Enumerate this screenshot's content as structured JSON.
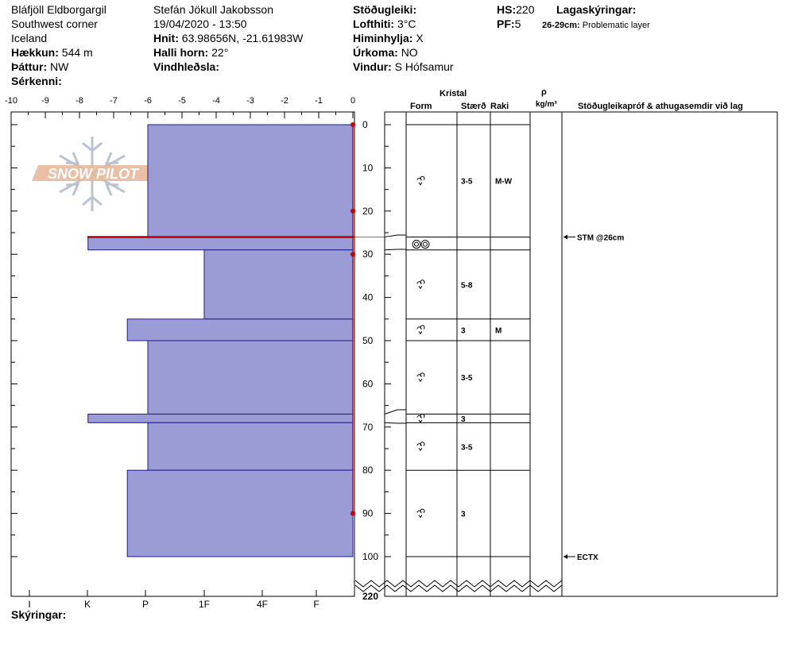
{
  "header": {
    "location": "Bláfjöll Eldborgargil",
    "region": "Southwest corner",
    "country": "Iceland",
    "elevation_label": "Hækkun:",
    "elevation_value": "544 m",
    "aspect_label": "Þáttur:",
    "aspect_value": "NW",
    "features_label": "Sérkenni:",
    "observer": "Stefán Jökull Jakobsson",
    "datetime": "19/04/2020 - 13:50",
    "coords_label": "Hnit:",
    "coords_value": "63.98656N, -21.61983W",
    "slope_label": "Halli horn:",
    "slope_value": "22°",
    "wind_loading_label": "Vindhleðsla:",
    "stability_label": "Stöðugleiki:",
    "air_temp_label": "Lofthiti:",
    "air_temp_value": "3°C",
    "sky_label": "Himinhylja:",
    "sky_value": "X",
    "precip_label": "Úrkoma:",
    "precip_value": "NO",
    "wind_label": "Vindur:",
    "wind_value": "S Hófsamur",
    "hs_label": "HS:",
    "hs_value": "220",
    "pf_label": "PF:",
    "pf_value": "5",
    "layer_notes_label": "Lagaskýringar:",
    "layer_note_range": "26-29cm:",
    "layer_note_text": "Problematic layer",
    "footer_label": "Skýringar:"
  },
  "logo": {
    "text": "SNOW PILOT"
  },
  "columns": {
    "crystal": "Kristal",
    "form": "Form",
    "size": "Stærð",
    "moisture": "Raki",
    "density_symbol": "ρ",
    "density_unit": "kg/m³",
    "tests": "Stöðugleikapróf & athugasemdir við lag"
  },
  "chart_data": {
    "type": "snow_profile",
    "temperature_axis": {
      "range": [
        -10,
        0
      ],
      "ticks": [
        "-10",
        "-9",
        "-8",
        "-7",
        "-6",
        "-5",
        "-4",
        "-3",
        "-2",
        "-1",
        "0"
      ]
    },
    "depth_axis": {
      "range": [
        0,
        100
      ],
      "break_label": "220",
      "ticks": [
        "0",
        "10",
        "20",
        "30",
        "40",
        "50",
        "60",
        "70",
        "80",
        "90",
        "100"
      ]
    },
    "hardness_scale": [
      "I",
      "K",
      "P",
      "1F",
      "4F",
      "F"
    ],
    "hardness_layers": [
      {
        "top": 0,
        "bottom": 26,
        "hardness_value": -6
      },
      {
        "top": 26,
        "bottom": 29,
        "hardness_value": -7.75
      },
      {
        "top": 29,
        "bottom": 45,
        "hardness_value": -4.35
      },
      {
        "top": 45,
        "bottom": 50,
        "hardness_value": -6.6
      },
      {
        "top": 50,
        "bottom": 67,
        "hardness_value": -6
      },
      {
        "top": 67,
        "bottom": 69,
        "hardness_value": -7.75
      },
      {
        "top": 69,
        "bottom": 80,
        "hardness_value": -6
      },
      {
        "top": 80,
        "bottom": 100,
        "hardness_value": -6.6
      }
    ],
    "problem_layer_depth": 26,
    "temperature_profile": [
      {
        "depth": 0,
        "temp": 0
      },
      {
        "depth": 20,
        "temp": 0
      },
      {
        "depth": 30,
        "temp": 0
      },
      {
        "depth": 90,
        "temp": 0
      }
    ],
    "layer_boundaries": [
      0,
      26,
      29,
      45,
      50,
      67,
      69,
      80,
      100
    ],
    "layers": [
      {
        "top": 0,
        "bottom": 26,
        "form": "rounding-faceted",
        "size": "3-5",
        "moisture": "M-W"
      },
      {
        "top": 26,
        "bottom": 29,
        "form": "melt-freeze",
        "size": "",
        "moisture": ""
      },
      {
        "top": 29,
        "bottom": 45,
        "form": "rounding-faceted",
        "size": "5-8",
        "moisture": ""
      },
      {
        "top": 45,
        "bottom": 50,
        "form": "rounding-faceted",
        "size": "3",
        "moisture": "M"
      },
      {
        "top": 50,
        "bottom": 67,
        "form": "rounded",
        "size": "3-5",
        "moisture": ""
      },
      {
        "top": 67,
        "bottom": 69,
        "form": "rounded",
        "size": "3",
        "moisture": ""
      },
      {
        "top": 69,
        "bottom": 80,
        "form": "rounded",
        "size": "3-5",
        "moisture": ""
      },
      {
        "top": 80,
        "bottom": 100,
        "form": "rounded",
        "size": "3",
        "moisture": ""
      }
    ],
    "tests": [
      {
        "depth": 26,
        "label": "STM @26cm"
      },
      {
        "depth": 100,
        "label": "ECTX"
      }
    ],
    "colors": {
      "hardness_fill": "#9b9bd6",
      "hardness_stroke": "#1c1c8c",
      "temperature": "#cc0000",
      "problem_layer": "#b40000"
    }
  }
}
